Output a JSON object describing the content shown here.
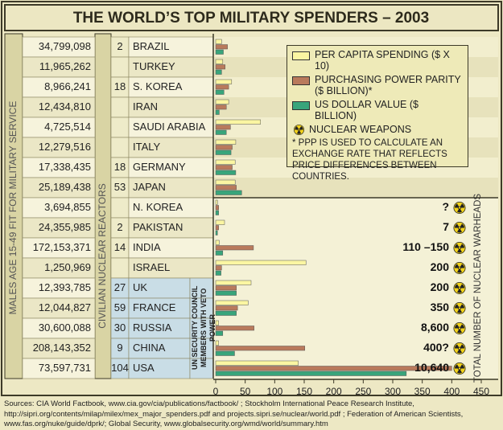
{
  "chart_data": {
    "type": "bar",
    "orientation": "horizontal",
    "title": "THE WORLD’S TOP MILITARY SPENDERS – 2003",
    "categories": [
      "BRAZIL",
      "TURKEY",
      "S. KOREA",
      "IRAN",
      "SAUDI ARABIA",
      "ITALY",
      "GERMANY",
      "JAPAN",
      "N. KOREA",
      "PAKISTAN",
      "INDIA",
      "ISRAEL",
      "UK",
      "FRANCE",
      "RUSSIA",
      "CHINA",
      "USA"
    ],
    "males_fit_label": "MALES AGE 15-49 FIT FOR MILITARY SERVICE",
    "males_fit": [
      "34,799,098",
      "11,965,262",
      "8,966,241",
      "12,434,810",
      "4,725,514",
      "12,279,516",
      "17,338,435",
      "25,189,438",
      "3,694,855",
      "24,355,985",
      "172,153,371",
      "1,250,969",
      "12,393,785",
      "12,044,827",
      "30,600,088",
      "208,143,352",
      "73,597,731"
    ],
    "reactors_label": "CIVILIAN NUCLEAR REACTORS",
    "reactors": [
      2,
      null,
      18,
      null,
      null,
      null,
      18,
      53,
      null,
      2,
      14,
      null,
      27,
      59,
      30,
      9,
      104
    ],
    "un_label": "UN SECURITY COUNCIL MEMBERS WITH VETO POWER",
    "un_veto": [
      false,
      false,
      false,
      false,
      false,
      false,
      false,
      false,
      false,
      false,
      false,
      false,
      true,
      true,
      true,
      true,
      true
    ],
    "warheads_label": "TOTAL NUMBER OF NUCLEAR WARHEADS",
    "warheads": [
      null,
      null,
      null,
      null,
      null,
      null,
      null,
      null,
      "?",
      "7",
      "110 –150",
      "200",
      "200",
      "350",
      "8,600",
      "400?",
      "10,640"
    ],
    "nuclear_legend": "NUCLEAR WEAPONS",
    "series": [
      {
        "name": "PER CAPITA SPENDING ($ X 10)",
        "color": "#fbf6a2",
        "values": [
          10,
          12,
          27,
          22,
          76,
          34,
          33,
          33,
          3,
          15,
          6,
          153,
          60,
          55,
          5,
          5,
          140
        ]
      },
      {
        "name": "PURCHASING POWER PARITY ($ BILLION)*",
        "color": "#b97a5c",
        "values": [
          20,
          16,
          22,
          18,
          25,
          28,
          28,
          35,
          5,
          5,
          64,
          10,
          35,
          37,
          65,
          151,
          400
        ]
      },
      {
        "name": "US DOLLAR VALUE ($ BILLION)",
        "color": "#38a57b",
        "values": [
          13,
          10,
          14,
          6,
          18,
          26,
          34,
          44,
          5,
          3,
          12,
          9,
          35,
          35,
          12,
          32,
          323
        ]
      }
    ],
    "note": "* PPP IS USED TO CALCULATE AN EXCHANGE RATE THAT REFLECTS PRICE DIFFERENCES BETWEEN COUNTRIES.",
    "xlim": [
      0,
      450
    ],
    "xticks": [
      0,
      50,
      100,
      150,
      200,
      250,
      300,
      350,
      400,
      450
    ],
    "sources": "Sources: CIA World Factbook, www.cia.gov/cia/publications/factbook/ ; Stockholm International Peace Research Institute, http://sipri.org/contents/milap/milex/mex_major_spenders.pdf and projects.sipri.se/nuclear/world.pdf ;  Federation of American Scientists, www.fas.org/nuke/guide/dprk/; Global Security, www.globalsecurity.org/wmd/world/summary.htm"
  }
}
